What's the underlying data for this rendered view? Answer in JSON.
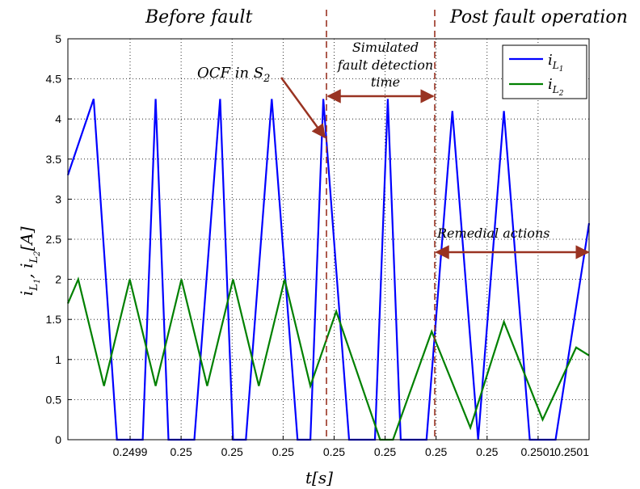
{
  "chart_data": {
    "type": "line",
    "xlabel": "t[s]",
    "ylabel": "i_{L1}, i_{L2}[A]",
    "x_tick_labels": [
      "0.2499",
      "0.25",
      "0.25",
      "0.25",
      "0.25",
      "0.25",
      "0.25",
      "0.25",
      "0.2501",
      "0.2501"
    ],
    "y_ticks": [
      "0",
      "0.5",
      "1",
      "1.5",
      "2",
      "2.5",
      "3",
      "3.5",
      "4",
      "4.5",
      "5"
    ],
    "ylim": [
      0,
      5
    ],
    "xlim": [
      0.24988,
      0.250082
    ],
    "grid": true,
    "legend_position": "top-right",
    "series": [
      {
        "name": "i_{L1}",
        "color": "#0000ff",
        "x": [
          0.24988,
          0.24989,
          0.249899,
          0.249909,
          0.249914,
          0.249919,
          0.249929,
          0.249939,
          0.249944,
          0.249949,
          0.249959,
          0.249969,
          0.249974,
          0.249979,
          0.249989,
          0.249999,
          0.250004,
          0.250009,
          0.250019,
          0.250029,
          0.250039,
          0.250049,
          0.250059,
          0.250069,
          0.250082
        ],
        "y": [
          3.3,
          4.25,
          0,
          0,
          4.25,
          0,
          0,
          4.25,
          0,
          0,
          4.25,
          0,
          0,
          4.25,
          0,
          0,
          4.25,
          0,
          0,
          4.1,
          0,
          4.1,
          0,
          0,
          2.7
        ]
      },
      {
        "name": "i_{L2}",
        "color": "#008000",
        "x": [
          0.24988,
          0.249884,
          0.249894,
          0.249904,
          0.249914,
          0.249924,
          0.249934,
          0.249944,
          0.249954,
          0.249964,
          0.249974,
          0.249984,
          0.250001,
          0.250006,
          0.250021,
          0.250036,
          0.250049,
          0.250064,
          0.250077,
          0.250082
        ],
        "y": [
          1.7,
          2.0,
          0.67,
          2.0,
          0.67,
          2.0,
          0.67,
          2.0,
          0.67,
          2.0,
          0.67,
          1.6,
          0.0,
          0.0,
          1.35,
          0.15,
          1.47,
          0.25,
          1.15,
          1.05
        ]
      }
    ],
    "annotations": {
      "before_fault": "Before fault",
      "post_fault": "Post fault operation",
      "ocf": "OCF in S",
      "ocf_sub": "2",
      "sim1": "Simulated",
      "sim2": "fault detection",
      "sim3": "time",
      "remedial": "Remedial actions"
    }
  }
}
